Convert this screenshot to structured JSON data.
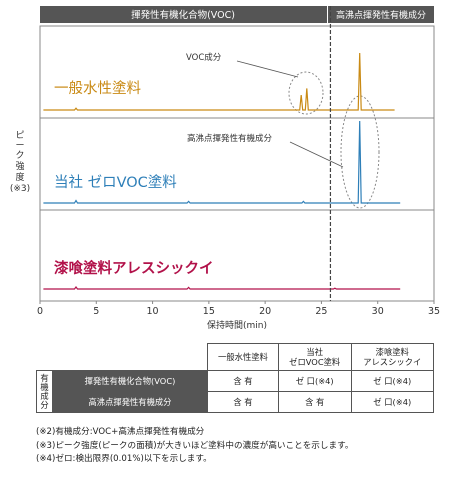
{
  "header": {
    "left_band": "揮発性有機化合物(VOC)",
    "right_band": "高沸点揮発性有機成分"
  },
  "y_axis_label": [
    "ピ",
    "ー",
    "ク",
    "強",
    "度",
    "(※3)"
  ],
  "annotations": {
    "voc": "VOC成分",
    "high_boiling": "高沸点揮発性有機成分"
  },
  "colors": {
    "band": "#555555",
    "series1": "#c98a14",
    "series2": "#2e7fb8",
    "series3": "#b2124a",
    "divider": "#444444"
  },
  "chart_data": {
    "type": "line",
    "xlabel": "保持時間(min)",
    "xlim": [
      0,
      35
    ],
    "xticks": [
      0,
      5,
      10,
      15,
      20,
      25,
      30,
      35
    ],
    "divider_x": 25.8,
    "series": [
      {
        "name": "一般水性塗料",
        "peaks": [
          {
            "x": 3.2,
            "h": 0.03
          },
          {
            "x": 23.2,
            "h": 0.25
          },
          {
            "x": 23.7,
            "h": 0.36
          },
          {
            "x": 28.4,
            "h": 0.95
          }
        ]
      },
      {
        "name": "当社 ゼロVOC塗料",
        "peaks": [
          {
            "x": 3.2,
            "h": 0.03
          },
          {
            "x": 13.2,
            "h": 0.02
          },
          {
            "x": 23.4,
            "h": 0.02
          },
          {
            "x": 28.4,
            "h": 1.0
          }
        ]
      },
      {
        "name": "漆喰塗料アレスシックイ",
        "peaks": [
          {
            "x": 3.2,
            "h": 0.05
          },
          {
            "x": 13.2,
            "h": 0.04
          },
          {
            "x": 26.2,
            "h": 0.02
          }
        ]
      }
    ]
  },
  "table": {
    "columns": [
      "一般水性塗料",
      "当社\nゼロVOC塗料",
      "漆喰塗料\nアレスシックイ"
    ],
    "side_label": [
      "有",
      "機",
      "成",
      "分"
    ],
    "rows": [
      {
        "label": "揮発性有機化合物(VOC)",
        "cells": [
          "含 有",
          "ゼ 口(※4)",
          "ゼ 口(※4)"
        ]
      },
      {
        "label": "高沸点揮発性有機成分",
        "cells": [
          "含 有",
          "含 有",
          "ゼ 口(※4)"
        ]
      }
    ]
  },
  "notes": [
    "(※2)有機成分:VOC+高沸点揮発性有機成分",
    "(※3)ピーク強度(ピークの面積)が大きいほど塗料中の濃度が高いことを示します。",
    "(※4)ゼロ:検出限界(0.01%)以下を示します。"
  ]
}
